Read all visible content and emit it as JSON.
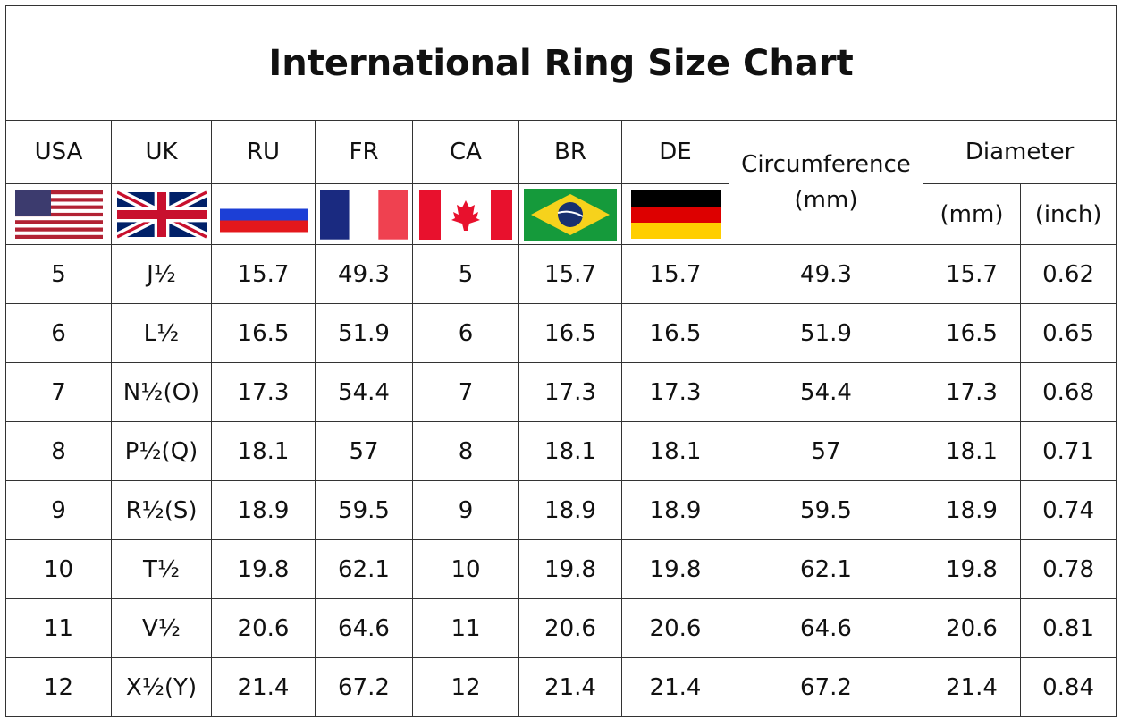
{
  "title": "International Ring Size Chart",
  "header": {
    "countries": [
      "USA",
      "UK",
      "RU",
      "FR",
      "CA",
      "BR",
      "DE"
    ],
    "circumference": "Circumference\n(mm)",
    "diameter": "Diameter",
    "diameter_mm": "(mm)",
    "diameter_inch": "(inch)"
  },
  "table": {
    "rows": [
      [
        "5",
        "J½",
        "15.7",
        "49.3",
        "5",
        "15.7",
        "15.7",
        "49.3",
        "15.7",
        "0.62"
      ],
      [
        "6",
        "L½",
        "16.5",
        "51.9",
        "6",
        "16.5",
        "16.5",
        "51.9",
        "16.5",
        "0.65"
      ],
      [
        "7",
        "N½(O)",
        "17.3",
        "54.4",
        "7",
        "17.3",
        "17.3",
        "54.4",
        "17.3",
        "0.68"
      ],
      [
        "8",
        "P½(Q)",
        "18.1",
        "57",
        "8",
        "18.1",
        "18.1",
        "57",
        "18.1",
        "0.71"
      ],
      [
        "9",
        "R½(S)",
        "18.9",
        "59.5",
        "9",
        "18.9",
        "18.9",
        "59.5",
        "18.9",
        "0.74"
      ],
      [
        "10",
        "T½",
        "19.8",
        "62.1",
        "10",
        "19.8",
        "19.8",
        "62.1",
        "19.8",
        "0.78"
      ],
      [
        "11",
        "V½",
        "20.6",
        "64.6",
        "11",
        "20.6",
        "20.6",
        "64.6",
        "20.6",
        "0.81"
      ],
      [
        "12",
        "X½(Y)",
        "21.4",
        "67.2",
        "12",
        "21.4",
        "21.4",
        "67.2",
        "21.4",
        "0.84"
      ]
    ]
  }
}
